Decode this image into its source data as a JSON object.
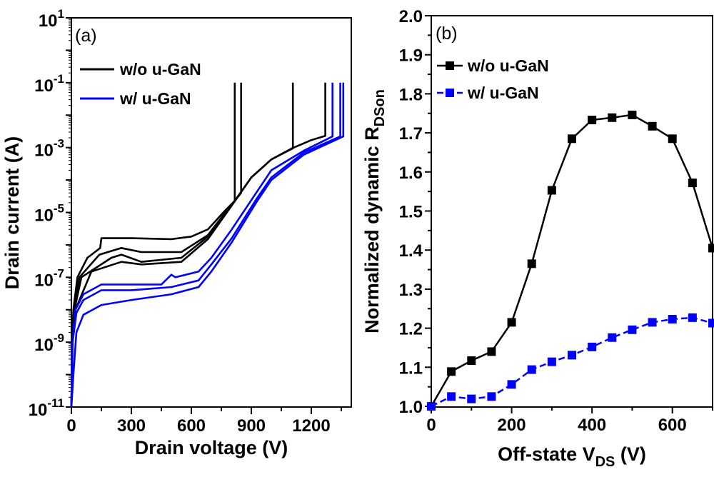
{
  "chart_data": [
    {
      "type": "line",
      "panel_label": "(a)",
      "xlabel": "Drain voltage (V)",
      "ylabel": "Drain current (A)",
      "xlim": [
        0,
        1400
      ],
      "ylim": [
        1e-11,
        10
      ],
      "yscale": "log",
      "x_ticks": [
        "0",
        "300",
        "600",
        "900",
        "1200"
      ],
      "y_ticks": [
        {
          "base": "10",
          "exp": "1"
        },
        {
          "base": "10",
          "exp": "-1"
        },
        {
          "base": "10",
          "exp": "-3"
        },
        {
          "base": "10",
          "exp": "-5"
        },
        {
          "base": "10",
          "exp": "-7"
        },
        {
          "base": "10",
          "exp": "-9"
        },
        {
          "base": "10",
          "exp": "-11"
        }
      ],
      "legend_position": "top-left",
      "series": [
        {
          "name": "w/o u-GaN",
          "color": "#000000",
          "curves": [
            [
              [
                0,
                1e-11
              ],
              [
                3,
                1e-09
              ],
              [
                10,
                1e-08
              ],
              [
                30,
                1e-07
              ],
              [
                80,
                4e-07
              ],
              [
                144,
                8e-07
              ],
              [
                150,
                1.6e-06
              ],
              [
                300,
                1.6e-06
              ],
              [
                500,
                1.5e-06
              ],
              [
                600,
                1.8e-06
              ],
              [
                683,
                3e-06
              ],
              [
                760,
                1e-05
              ],
              [
                817,
                2.3e-05
              ],
              [
                817,
                0.1
              ]
            ],
            [
              [
                0,
                1e-11
              ],
              [
                4,
                1e-09
              ],
              [
                12,
                1e-08
              ],
              [
                40,
                1e-07
              ],
              [
                140,
                5e-07
              ],
              [
                250,
                8e-07
              ],
              [
                350,
                6e-07
              ],
              [
                550,
                6e-07
              ],
              [
                683,
                2e-06
              ],
              [
                780,
                1.2e-05
              ],
              [
                849,
                4e-05
              ],
              [
                849,
                0.1
              ]
            ],
            [
              [
                0,
                1e-11
              ],
              [
                5,
                1e-09
              ],
              [
                15,
                1e-08
              ],
              [
                50,
                1e-07
              ],
              [
                200,
                4e-07
              ],
              [
                250,
                5e-07
              ],
              [
                350,
                3e-07
              ],
              [
                550,
                4e-07
              ],
              [
                683,
                1.8e-06
              ],
              [
                817,
                2.3e-05
              ],
              [
                900,
                0.00012
              ],
              [
                1000,
                0.00043
              ],
              [
                1108,
                0.00095
              ],
              [
                1108,
                0.1
              ]
            ],
            [
              [
                0,
                1e-11
              ],
              [
                6,
                1e-09
              ],
              [
                20,
                1e-08
              ],
              [
                100,
                1.5e-07
              ],
              [
                250,
                3e-07
              ],
              [
                350,
                2.5e-07
              ],
              [
                550,
                3e-07
              ],
              [
                683,
                1.5e-06
              ],
              [
                817,
                2.2e-05
              ],
              [
                900,
                0.00012
              ],
              [
                1000,
                0.00043
              ],
              [
                1104,
                0.00095
              ],
              [
                1200,
                0.0017
              ],
              [
                1270,
                0.0023
              ],
              [
                1270,
                0.1
              ]
            ]
          ]
        },
        {
          "name": "w/ u-GaN",
          "color": "#0000ff",
          "curves": [
            [
              [
                0,
                1e-11
              ],
              [
                5,
                1e-09
              ],
              [
                20,
                1e-08
              ],
              [
                60,
                3e-08
              ],
              [
                150,
                6e-08
              ],
              [
                300,
                6e-08
              ],
              [
                450,
                6e-08
              ],
              [
                500,
                1.2e-07
              ],
              [
                520,
                1e-07
              ],
              [
                636,
                1.5e-07
              ],
              [
                700,
                4e-07
              ],
              [
                802,
                3e-06
              ],
              [
                924,
                4e-05
              ],
              [
                1000,
                0.0002
              ],
              [
                1162,
                0.0008
              ],
              [
                1306,
                0.0022
              ],
              [
                1306,
                0.1
              ]
            ],
            [
              [
                0,
                1e-11
              ],
              [
                6,
                1e-09
              ],
              [
                25,
                8e-09
              ],
              [
                60,
                2e-08
              ],
              [
                150,
                4e-08
              ],
              [
                300,
                4e-08
              ],
              [
                500,
                5e-08
              ],
              [
                636,
                8e-08
              ],
              [
                700,
                2.5e-07
              ],
              [
                802,
                1.6e-06
              ],
              [
                924,
                2.5e-05
              ],
              [
                1000,
                0.00012
              ],
              [
                1162,
                0.0007
              ],
              [
                1345,
                0.0022
              ],
              [
                1345,
                0.1
              ]
            ],
            [
              [
                0,
                1e-11
              ],
              [
                10,
                1e-10
              ],
              [
                25,
                2e-09
              ],
              [
                60,
                7e-09
              ],
              [
                150,
                1.4e-08
              ],
              [
                300,
                2e-08
              ],
              [
                500,
                3e-08
              ],
              [
                636,
                5e-08
              ],
              [
                700,
                1.5e-07
              ],
              [
                802,
                1.2e-06
              ],
              [
                924,
                2e-05
              ],
              [
                1000,
                0.0001
              ],
              [
                1162,
                0.0006
              ],
              [
                1360,
                0.0022
              ],
              [
                1360,
                0.1
              ]
            ]
          ]
        }
      ]
    },
    {
      "type": "line",
      "panel_label": "(b)",
      "xlabel": {
        "main": "Off-state V",
        "sub": "DS",
        "tail": " (V)"
      },
      "ylabel": {
        "main": "Normalized dynamic R",
        "sub": "DSon"
      },
      "xlim": [
        0,
        700
      ],
      "ylim": [
        1.0,
        2.0
      ],
      "x_ticks": [
        "0",
        "200",
        "400",
        "600"
      ],
      "y_ticks": [
        "1.0",
        "1.1",
        "1.2",
        "1.3",
        "1.4",
        "1.5",
        "1.6",
        "1.7",
        "1.8",
        "1.9",
        "2.0"
      ],
      "legend_position": "top-left",
      "x": [
        0,
        50,
        100,
        150,
        200,
        250,
        300,
        350,
        400,
        450,
        500,
        550,
        600,
        650,
        700
      ],
      "series": [
        {
          "name": "w/o u-GaN",
          "color": "#000000",
          "dash": "solid",
          "values": [
            1.0,
            1.089,
            1.117,
            1.14,
            1.215,
            1.365,
            1.553,
            1.685,
            1.733,
            1.739,
            1.746,
            1.717,
            1.685,
            1.572,
            1.405
          ]
        },
        {
          "name": "w/ u-GaN",
          "color": "#0000ff",
          "dash": "dashed",
          "values": [
            1.0,
            1.025,
            1.019,
            1.025,
            1.056,
            1.094,
            1.114,
            1.131,
            1.152,
            1.176,
            1.196,
            1.215,
            1.223,
            1.227,
            1.213
          ]
        }
      ]
    }
  ]
}
